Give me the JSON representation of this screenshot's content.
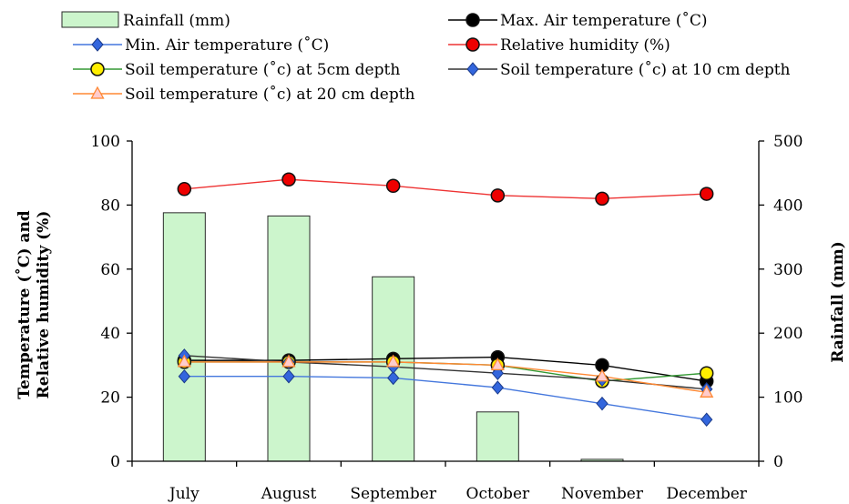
{
  "chart_data": {
    "type": "bar",
    "categories": [
      "July",
      "August",
      "September",
      "October",
      "November",
      "December"
    ],
    "y_left": {
      "label_line1": "Temperature (˚C) and",
      "label_line2": "Relative humidity (%)",
      "ylim": [
        0,
        100
      ],
      "ticks": [
        "0",
        "20",
        "40",
        "60",
        "80",
        "100"
      ]
    },
    "y_right": {
      "label": "Rainfall (mm)",
      "ylim": [
        0,
        500
      ],
      "ticks": [
        "0",
        "100",
        "200",
        "300",
        "400",
        "500"
      ]
    },
    "grid": false,
    "legend_position": "top",
    "bar_series": {
      "name": "Rainfall (mm)",
      "axis": "right",
      "color": "#ccf5cc",
      "values": [
        388,
        383,
        288,
        77,
        3,
        0
      ]
    },
    "series": [
      {
        "name": "Max. Air temperature (˚C)",
        "axis": "left",
        "color": "#000000",
        "marker": "circle",
        "marker_fill": "#000000",
        "values": [
          31.5,
          31.5,
          32,
          32.5,
          30,
          25
        ]
      },
      {
        "name": "Min. Air temperature (˚C)",
        "axis": "left",
        "color": "#4477dd",
        "marker": "diamond",
        "marker_fill": "#3366dd",
        "values": [
          26.5,
          26.5,
          26,
          23,
          18,
          13
        ]
      },
      {
        "name": "Relative humidity (%)",
        "axis": "left",
        "color": "#ee3333",
        "marker": "circle",
        "marker_fill": "#ee0000",
        "values": [
          85,
          88,
          86,
          83,
          82,
          83.5
        ]
      },
      {
        "name": "Soil temperature (˚c) at 5cm depth",
        "axis": "left",
        "color": "#339933",
        "marker": "circle",
        "marker_fill": "#ffee00",
        "values": [
          31,
          31,
          31,
          30,
          25,
          27.5
        ]
      },
      {
        "name": "Soil temperature (˚c) at 10 cm depth",
        "axis": "left",
        "color": "#333333",
        "marker": "diamond",
        "marker_fill": "#3366dd",
        "values": [
          33,
          31,
          29.5,
          27.5,
          25.5,
          22.5
        ]
      },
      {
        "name": "Soil temperature (˚c) at 20 cm depth",
        "axis": "left",
        "color": "#ff8833",
        "marker": "triangle",
        "marker_fill": "#ffcccc",
        "values": [
          31,
          31,
          31,
          30,
          26.5,
          21.5
        ]
      }
    ]
  }
}
